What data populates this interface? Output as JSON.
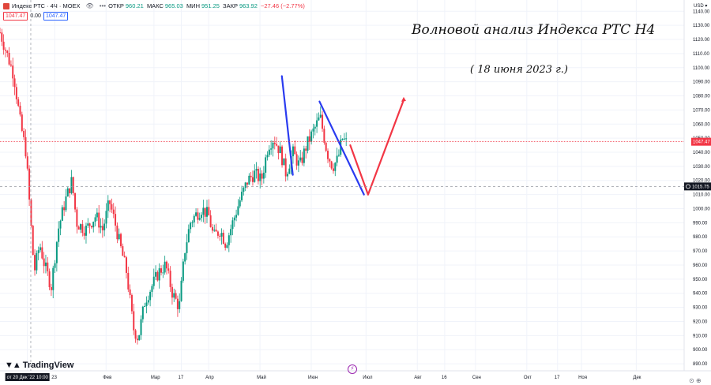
{
  "legend": {
    "symbol_name": "Индекс РТС · 4Ч · MOEX",
    "open_label": "ОТКР",
    "open": "960.21",
    "high_label": "МАКС",
    "high": "965.03",
    "low_label": "МИН",
    "low": "951.25",
    "close_label": "ЗАКР",
    "close": "963.92",
    "change": "−27.46 (−2.77%)",
    "inputs": [
      "1047.47",
      "0.00",
      "1047.47"
    ]
  },
  "annotation_title": "Волновой анализ Индекса РТС Н4",
  "annotation_subtitle": "( 18 июня 2023 г.)",
  "branding": "TradingView",
  "corner_label": "⊙ ⊕",
  "colors": {
    "up": "#089981",
    "down": "#f23645",
    "blue_line": "#2a3bf0",
    "red_line": "#f23645",
    "last_price": "#f23645",
    "crosshair_label": "#131722"
  },
  "chart_data": {
    "type": "line",
    "currency_label": "USD",
    "y_axis": {
      "min": 885,
      "max": 1148,
      "ticks": [
        1140,
        1130,
        1120,
        1110,
        1100,
        1090,
        1080,
        1070,
        1060,
        1050,
        1040,
        1030,
        1020,
        1010,
        1000,
        990,
        980,
        970,
        960,
        950,
        940,
        930,
        920,
        910,
        900,
        890
      ]
    },
    "x_axis": {
      "tick_labels": [
        {
          "label": "от 20 Дек '22  10:00",
          "t": 0.04
        },
        {
          "label": "23",
          "t": 0.08
        },
        {
          "label": "Фев",
          "t": 0.155
        },
        {
          "label": "Мар",
          "t": 0.225
        },
        {
          "label": "17",
          "t": 0.265
        },
        {
          "label": "Апр",
          "t": 0.305
        },
        {
          "label": "Май",
          "t": 0.38
        },
        {
          "label": "Июн",
          "t": 0.455
        },
        {
          "label": "Июл",
          "t": 0.535
        },
        {
          "label": "Авг",
          "t": 0.61
        },
        {
          "label": "16",
          "t": 0.65
        },
        {
          "label": "Сен",
          "t": 0.695
        },
        {
          "label": "Окт",
          "t": 0.77
        },
        {
          "label": "17",
          "t": 0.815
        },
        {
          "label": "Ноя",
          "t": 0.85
        },
        {
          "label": "Дек",
          "t": 0.93
        }
      ]
    },
    "last_price": "1047.47",
    "crosshair_price": "1015.75",
    "price_path": [
      [
        0.0,
        1125
      ],
      [
        0.01,
        1110
      ],
      [
        0.02,
        1095
      ],
      [
        0.03,
        1060
      ],
      [
        0.038,
        1040
      ],
      [
        0.045,
        990
      ],
      [
        0.05,
        955
      ],
      [
        0.058,
        975
      ],
      [
        0.065,
        960
      ],
      [
        0.075,
        945
      ],
      [
        0.085,
        985
      ],
      [
        0.095,
        1005
      ],
      [
        0.105,
        1020
      ],
      [
        0.112,
        990
      ],
      [
        0.125,
        985
      ],
      [
        0.14,
        995
      ],
      [
        0.15,
        985
      ],
      [
        0.16,
        1005
      ],
      [
        0.168,
        990
      ],
      [
        0.175,
        975
      ],
      [
        0.185,
        955
      ],
      [
        0.195,
        915
      ],
      [
        0.202,
        908
      ],
      [
        0.212,
        935
      ],
      [
        0.222,
        945
      ],
      [
        0.232,
        955
      ],
      [
        0.242,
        960
      ],
      [
        0.252,
        940
      ],
      [
        0.262,
        930
      ],
      [
        0.27,
        970
      ],
      [
        0.278,
        990
      ],
      [
        0.285,
        995
      ],
      [
        0.295,
        1000
      ],
      [
        0.305,
        995
      ],
      [
        0.312,
        980
      ],
      [
        0.322,
        985
      ],
      [
        0.33,
        975
      ],
      [
        0.34,
        990
      ],
      [
        0.35,
        1005
      ],
      [
        0.362,
        1020
      ],
      [
        0.372,
        1025
      ],
      [
        0.382,
        1020
      ],
      [
        0.392,
        1045
      ],
      [
        0.4,
        1050
      ],
      [
        0.41,
        1040
      ],
      [
        0.418,
        1025
      ],
      [
        0.428,
        1040
      ],
      [
        0.438,
        1030
      ],
      [
        0.448,
        1045
      ],
      [
        0.458,
        1055
      ],
      [
        0.468,
        1065
      ],
      [
        0.478,
        1040
      ],
      [
        0.486,
        1030
      ],
      [
        0.494,
        1035
      ],
      [
        0.5,
        1050
      ],
      [
        0.506,
        1047
      ]
    ],
    "wave_lines": [
      {
        "color": "blue",
        "points": [
          [
            0.412,
            1094
          ],
          [
            0.428,
            1024
          ]
        ]
      },
      {
        "color": "blue",
        "points": [
          [
            0.467,
            1076
          ],
          [
            0.532,
            1010
          ]
        ]
      },
      {
        "color": "red",
        "points": [
          [
            0.512,
            1045
          ],
          [
            0.538,
            1010
          ]
        ]
      },
      {
        "color": "red",
        "points": [
          [
            0.538,
            1010
          ],
          [
            0.59,
            1077
          ]
        ]
      }
    ],
    "grid": true,
    "legend_position": "top-left"
  }
}
